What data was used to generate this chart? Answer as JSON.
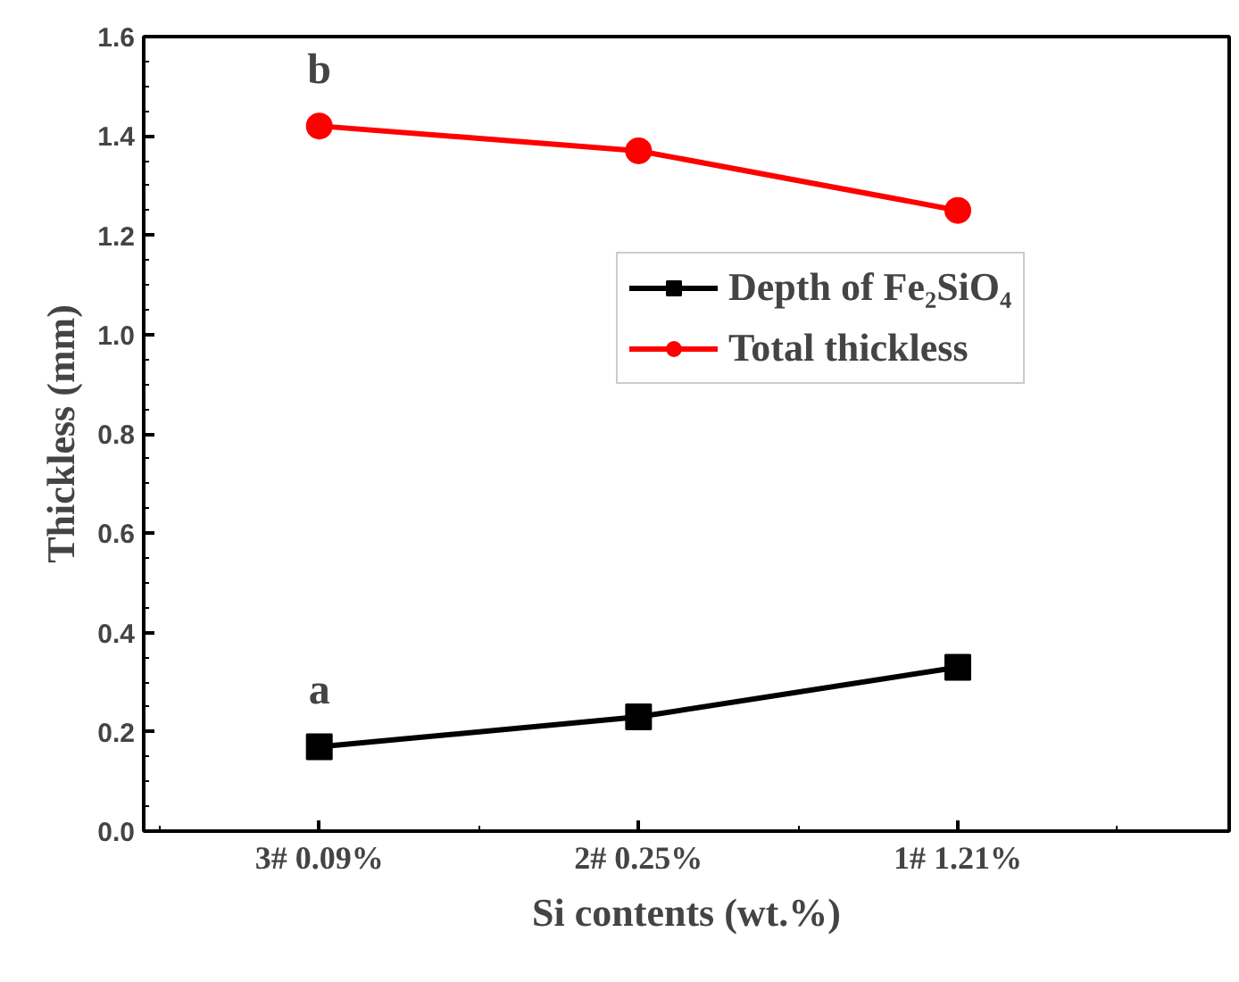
{
  "chart_data": {
    "type": "line",
    "xlabel": "Si contents (wt.%)",
    "ylabel": "Thickless (mm)",
    "categories": [
      "3# 0.09%",
      "2# 0.25%",
      "1# 1.21%"
    ],
    "series": [
      {
        "name": "Depth of Fe₂SiO₄",
        "color": "#000000",
        "marker": "square",
        "values": [
          0.17,
          0.23,
          0.33
        ]
      },
      {
        "name": "Total thickless",
        "color": "#ff0000",
        "marker": "circle",
        "values": [
          1.42,
          1.37,
          1.25
        ]
      }
    ],
    "ylim": [
      0,
      1.6
    ],
    "yticks": [
      {
        "value": 0,
        "label": "0.0"
      },
      {
        "value": 0.2,
        "label": "0.2"
      },
      {
        "value": 0.4,
        "label": "0.4"
      },
      {
        "value": 0.6,
        "label": "0.6"
      },
      {
        "value": 0.8,
        "label": "0.8"
      },
      {
        "value": 1.0,
        "label": "1.0"
      },
      {
        "value": 1.2,
        "label": "1.2"
      },
      {
        "value": 1.4,
        "label": "1.4"
      },
      {
        "value": 1.6,
        "label": "1.6"
      }
    ],
    "annotations": [
      "a",
      "b"
    ],
    "legend": "right",
    "grid": false,
    "line_style": "solid"
  }
}
